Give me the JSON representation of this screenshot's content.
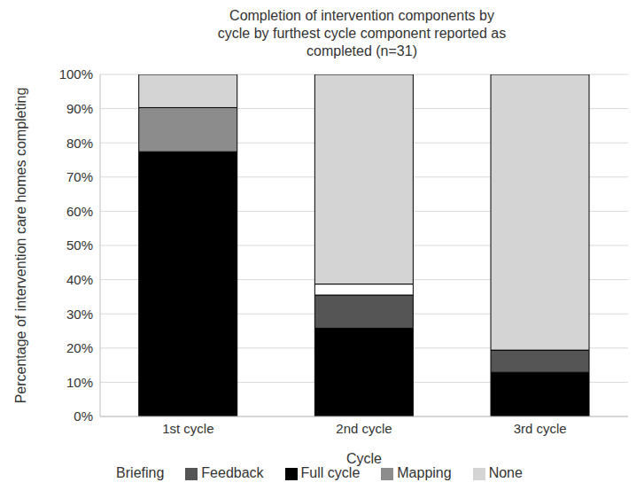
{
  "chart_data": {
    "type": "bar",
    "title": "Completion of intervention components by cycle by furthest cycle component reported as completed (n=31)",
    "x_label": "Cycle",
    "y_label": "Percentage of intervention care homes completing",
    "categories": [
      "1st cycle",
      "2nd cycle",
      "3rd cycle"
    ],
    "series": [
      {
        "name": "Full cycle",
        "color": "#000000",
        "values": [
          77.4,
          25.8,
          12.9
        ]
      },
      {
        "name": "Feedback",
        "color": "#555555",
        "values": [
          0,
          9.7,
          6.5
        ]
      },
      {
        "name": "Mapping",
        "color": "#8c8c8c",
        "values": [
          12.9,
          0,
          0
        ]
      },
      {
        "name": "Briefing",
        "color": "#ffffff",
        "values": [
          0,
          3.2,
          0
        ]
      },
      {
        "name": "None",
        "color": "#d4d4d4",
        "values": [
          9.7,
          61.3,
          80.6
        ]
      }
    ],
    "stacked": true,
    "grid": true,
    "legend": "bottom",
    "ylim": [
      0,
      100
    ],
    "yticks": [
      {
        "value": 0,
        "label": "0%"
      },
      {
        "value": 10,
        "label": "10%"
      },
      {
        "value": 20,
        "label": "20%"
      },
      {
        "value": 30,
        "label": "30%"
      },
      {
        "value": 40,
        "label": "40%"
      },
      {
        "value": 50,
        "label": "50%"
      },
      {
        "value": 60,
        "label": "60%"
      },
      {
        "value": 70,
        "label": "70%"
      },
      {
        "value": 80,
        "label": "80%"
      },
      {
        "value": 90,
        "label": "90%"
      },
      {
        "value": 100,
        "label": "100%"
      }
    ]
  }
}
